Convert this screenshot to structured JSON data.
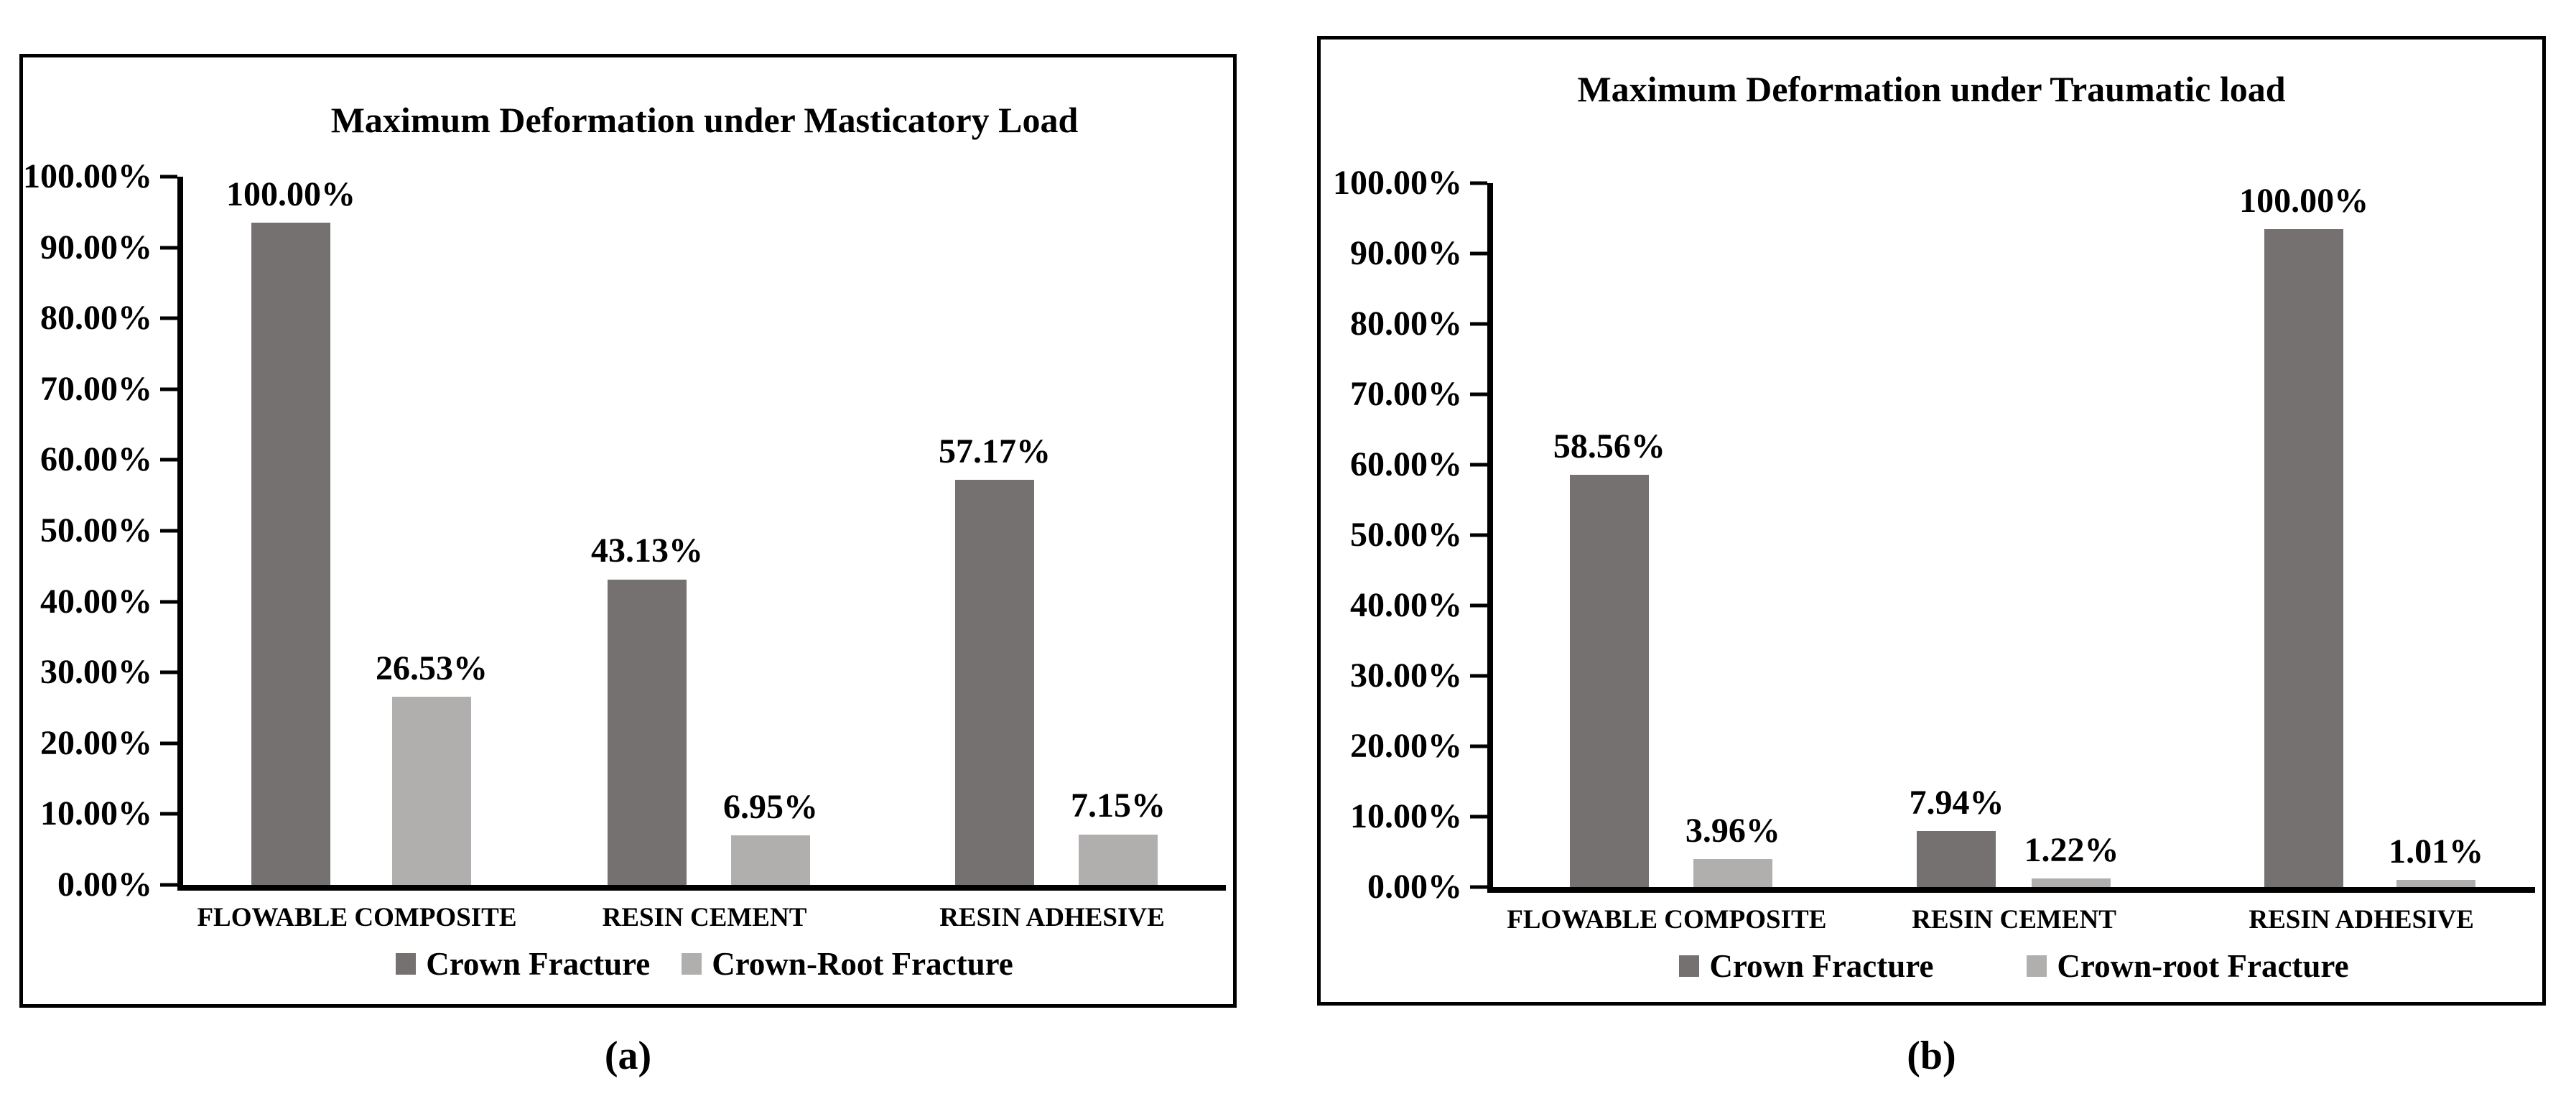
{
  "colors": {
    "crown_fracture": "#747170",
    "crown_root_fracture": "#b1aeae",
    "axis": "#000000"
  },
  "captions": {
    "a": "(a)",
    "b": "(b)"
  },
  "chart_data": [
    {
      "type": "bar",
      "title": "Maximum Deformation under Masticatory Load",
      "categories": [
        "FLOWABLE COMPOSITE",
        "RESIN CEMENT",
        "RESIN ADHESIVE"
      ],
      "series": [
        {
          "name": "Crown Fracture",
          "color_key": "crown_fracture",
          "values": [
            100.0,
            43.13,
            57.17
          ],
          "labels": [
            "100.00%",
            "43.13%",
            "57.17%"
          ]
        },
        {
          "name": "Crown-Root Fracture",
          "color_key": "crown_root_fracture",
          "values": [
            26.53,
            6.95,
            7.15
          ],
          "labels": [
            "26.53%",
            "6.95%",
            "7.15%"
          ]
        }
      ],
      "yticks": [
        "100.00%",
        "90.00%",
        "80.00%",
        "70.00%",
        "60.00%",
        "50.00%",
        "40.00%",
        "30.00%",
        "20.00%",
        "10.00%",
        "0.00%"
      ],
      "ylim": [
        0,
        100
      ],
      "grid": false,
      "legend_position": "bottom",
      "caption": "(a)"
    },
    {
      "type": "bar",
      "title": "Maximum Deformation under Traumatic load",
      "categories": [
        "FLOWABLE COMPOSITE",
        "RESIN CEMENT",
        "RESIN ADHESIVE"
      ],
      "series": [
        {
          "name": "Crown Fracture",
          "color_key": "crown_fracture",
          "values": [
            58.56,
            7.94,
            100.0
          ],
          "labels": [
            "58.56%",
            "7.94%",
            "100.00%"
          ]
        },
        {
          "name": "Crown-root Fracture",
          "color_key": "crown_root_fracture",
          "values": [
            3.96,
            1.22,
            1.01
          ],
          "labels": [
            "3.96%",
            "1.22%",
            "1.01%"
          ]
        }
      ],
      "yticks": [
        "100.00%",
        "90.00%",
        "80.00%",
        "70.00%",
        "60.00%",
        "50.00%",
        "40.00%",
        "30.00%",
        "20.00%",
        "10.00%",
        "0.00%"
      ],
      "ylim": [
        0,
        100
      ],
      "grid": false,
      "legend_position": "bottom",
      "caption": "(b)"
    }
  ]
}
